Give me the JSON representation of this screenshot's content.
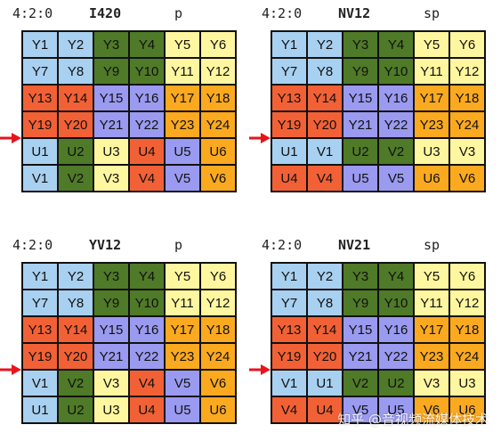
{
  "colors": {
    "blue": "#a8d0f0",
    "green": "#4f7a28",
    "yellow": "#fff6a0",
    "red": "#f26135",
    "purple": "#9a9af0",
    "orange": "#fba91f",
    "arrow": "#e8141c"
  },
  "panels": [
    {
      "format": "4:2:0",
      "name": "I420",
      "type": "p",
      "cells": [
        [
          {
            "t": "Y1",
            "c": "blue"
          },
          {
            "t": "Y2",
            "c": "blue"
          },
          {
            "t": "Y3",
            "c": "green"
          },
          {
            "t": "Y4",
            "c": "green"
          },
          {
            "t": "Y5",
            "c": "yellow"
          },
          {
            "t": "Y6",
            "c": "yellow"
          }
        ],
        [
          {
            "t": "Y7",
            "c": "blue"
          },
          {
            "t": "Y8",
            "c": "blue"
          },
          {
            "t": "Y9",
            "c": "green"
          },
          {
            "t": "Y10",
            "c": "green"
          },
          {
            "t": "Y11",
            "c": "yellow"
          },
          {
            "t": "Y12",
            "c": "yellow"
          }
        ],
        [
          {
            "t": "Y13",
            "c": "red"
          },
          {
            "t": "Y14",
            "c": "red"
          },
          {
            "t": "Y15",
            "c": "purple"
          },
          {
            "t": "Y16",
            "c": "purple"
          },
          {
            "t": "Y17",
            "c": "orange"
          },
          {
            "t": "Y18",
            "c": "orange"
          }
        ],
        [
          {
            "t": "Y19",
            "c": "red"
          },
          {
            "t": "Y20",
            "c": "red"
          },
          {
            "t": "Y21",
            "c": "purple"
          },
          {
            "t": "Y22",
            "c": "purple"
          },
          {
            "t": "Y23",
            "c": "orange"
          },
          {
            "t": "Y24",
            "c": "orange"
          }
        ],
        [
          {
            "t": "U1",
            "c": "blue"
          },
          {
            "t": "U2",
            "c": "green"
          },
          {
            "t": "U3",
            "c": "yellow"
          },
          {
            "t": "U4",
            "c": "red"
          },
          {
            "t": "U5",
            "c": "purple"
          },
          {
            "t": "U6",
            "c": "orange"
          }
        ],
        [
          {
            "t": "V1",
            "c": "blue"
          },
          {
            "t": "V2",
            "c": "green"
          },
          {
            "t": "V3",
            "c": "yellow"
          },
          {
            "t": "V4",
            "c": "red"
          },
          {
            "t": "V5",
            "c": "purple"
          },
          {
            "t": "V6",
            "c": "orange"
          }
        ]
      ]
    },
    {
      "format": "4:2:0",
      "name": "NV12",
      "type": "sp",
      "cells": [
        [
          {
            "t": "Y1",
            "c": "blue"
          },
          {
            "t": "Y2",
            "c": "blue"
          },
          {
            "t": "Y3",
            "c": "green"
          },
          {
            "t": "Y4",
            "c": "green"
          },
          {
            "t": "Y5",
            "c": "yellow"
          },
          {
            "t": "Y6",
            "c": "yellow"
          }
        ],
        [
          {
            "t": "Y7",
            "c": "blue"
          },
          {
            "t": "Y8",
            "c": "blue"
          },
          {
            "t": "Y9",
            "c": "green"
          },
          {
            "t": "Y10",
            "c": "green"
          },
          {
            "t": "Y11",
            "c": "yellow"
          },
          {
            "t": "Y12",
            "c": "yellow"
          }
        ],
        [
          {
            "t": "Y13",
            "c": "red"
          },
          {
            "t": "Y14",
            "c": "red"
          },
          {
            "t": "Y15",
            "c": "purple"
          },
          {
            "t": "Y16",
            "c": "purple"
          },
          {
            "t": "Y17",
            "c": "orange"
          },
          {
            "t": "Y18",
            "c": "orange"
          }
        ],
        [
          {
            "t": "Y19",
            "c": "red"
          },
          {
            "t": "Y20",
            "c": "red"
          },
          {
            "t": "Y21",
            "c": "purple"
          },
          {
            "t": "Y22",
            "c": "purple"
          },
          {
            "t": "Y23",
            "c": "orange"
          },
          {
            "t": "Y24",
            "c": "orange"
          }
        ],
        [
          {
            "t": "U1",
            "c": "blue"
          },
          {
            "t": "V1",
            "c": "blue"
          },
          {
            "t": "U2",
            "c": "green"
          },
          {
            "t": "V2",
            "c": "green"
          },
          {
            "t": "U3",
            "c": "yellow"
          },
          {
            "t": "V3",
            "c": "yellow"
          }
        ],
        [
          {
            "t": "U4",
            "c": "red"
          },
          {
            "t": "V4",
            "c": "red"
          },
          {
            "t": "U5",
            "c": "purple"
          },
          {
            "t": "V5",
            "c": "purple"
          },
          {
            "t": "U6",
            "c": "orange"
          },
          {
            "t": "V6",
            "c": "orange"
          }
        ]
      ]
    },
    {
      "format": "4:2:0",
      "name": "YV12",
      "type": "p",
      "cells": [
        [
          {
            "t": "Y1",
            "c": "blue"
          },
          {
            "t": "Y2",
            "c": "blue"
          },
          {
            "t": "Y3",
            "c": "green"
          },
          {
            "t": "Y4",
            "c": "green"
          },
          {
            "t": "Y5",
            "c": "yellow"
          },
          {
            "t": "Y6",
            "c": "yellow"
          }
        ],
        [
          {
            "t": "Y7",
            "c": "blue"
          },
          {
            "t": "Y8",
            "c": "blue"
          },
          {
            "t": "Y9",
            "c": "green"
          },
          {
            "t": "Y10",
            "c": "green"
          },
          {
            "t": "Y11",
            "c": "yellow"
          },
          {
            "t": "Y12",
            "c": "yellow"
          }
        ],
        [
          {
            "t": "Y13",
            "c": "red"
          },
          {
            "t": "Y14",
            "c": "red"
          },
          {
            "t": "Y15",
            "c": "purple"
          },
          {
            "t": "Y16",
            "c": "purple"
          },
          {
            "t": "Y17",
            "c": "orange"
          },
          {
            "t": "Y18",
            "c": "orange"
          }
        ],
        [
          {
            "t": "Y19",
            "c": "red"
          },
          {
            "t": "Y20",
            "c": "red"
          },
          {
            "t": "Y21",
            "c": "purple"
          },
          {
            "t": "Y22",
            "c": "purple"
          },
          {
            "t": "Y23",
            "c": "orange"
          },
          {
            "t": "Y24",
            "c": "orange"
          }
        ],
        [
          {
            "t": "V1",
            "c": "blue"
          },
          {
            "t": "V2",
            "c": "green"
          },
          {
            "t": "V3",
            "c": "yellow"
          },
          {
            "t": "V4",
            "c": "red"
          },
          {
            "t": "V5",
            "c": "purple"
          },
          {
            "t": "V6",
            "c": "orange"
          }
        ],
        [
          {
            "t": "U1",
            "c": "blue"
          },
          {
            "t": "U2",
            "c": "green"
          },
          {
            "t": "U3",
            "c": "yellow"
          },
          {
            "t": "U4",
            "c": "red"
          },
          {
            "t": "U5",
            "c": "purple"
          },
          {
            "t": "U6",
            "c": "orange"
          }
        ]
      ]
    },
    {
      "format": "4:2:0",
      "name": "NV21",
      "type": "sp",
      "cells": [
        [
          {
            "t": "Y1",
            "c": "blue"
          },
          {
            "t": "Y2",
            "c": "blue"
          },
          {
            "t": "Y3",
            "c": "green"
          },
          {
            "t": "Y4",
            "c": "green"
          },
          {
            "t": "Y5",
            "c": "yellow"
          },
          {
            "t": "Y6",
            "c": "yellow"
          }
        ],
        [
          {
            "t": "Y7",
            "c": "blue"
          },
          {
            "t": "Y8",
            "c": "blue"
          },
          {
            "t": "Y9",
            "c": "green"
          },
          {
            "t": "Y10",
            "c": "green"
          },
          {
            "t": "Y11",
            "c": "yellow"
          },
          {
            "t": "Y12",
            "c": "yellow"
          }
        ],
        [
          {
            "t": "Y13",
            "c": "red"
          },
          {
            "t": "Y14",
            "c": "red"
          },
          {
            "t": "Y15",
            "c": "purple"
          },
          {
            "t": "Y16",
            "c": "purple"
          },
          {
            "t": "Y17",
            "c": "orange"
          },
          {
            "t": "Y18",
            "c": "orange"
          }
        ],
        [
          {
            "t": "Y19",
            "c": "red"
          },
          {
            "t": "Y20",
            "c": "red"
          },
          {
            "t": "Y21",
            "c": "purple"
          },
          {
            "t": "Y22",
            "c": "purple"
          },
          {
            "t": "Y23",
            "c": "orange"
          },
          {
            "t": "Y24",
            "c": "orange"
          }
        ],
        [
          {
            "t": "V1",
            "c": "blue"
          },
          {
            "t": "U1",
            "c": "blue"
          },
          {
            "t": "V2",
            "c": "green"
          },
          {
            "t": "U2",
            "c": "green"
          },
          {
            "t": "V3",
            "c": "yellow"
          },
          {
            "t": "U3",
            "c": "yellow"
          }
        ],
        [
          {
            "t": "V4",
            "c": "red"
          },
          {
            "t": "U4",
            "c": "red"
          },
          {
            "t": "V5",
            "c": "purple"
          },
          {
            "t": "U5",
            "c": "purple"
          },
          {
            "t": "V6",
            "c": "orange"
          },
          {
            "t": "U6",
            "c": "orange"
          }
        ]
      ]
    }
  ],
  "watermark": "知乎 @音视频流媒体技术"
}
